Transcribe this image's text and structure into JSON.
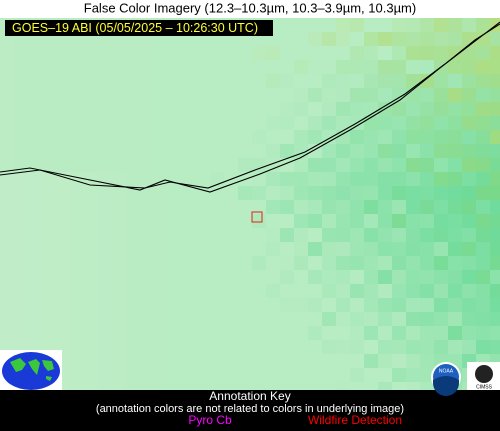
{
  "header": {
    "title": "False Color Imagery (12.3–10.3µm, 10.3–3.9µm, 10.3µm)"
  },
  "image": {
    "label": "GOES–19 ABI (05/05/2025 – 10:26:30 UTC)"
  },
  "annotation_key": {
    "title": "Annotation Key",
    "note": "(annotation colors are not related to colors in underlying image)",
    "items": [
      "Pyro Cb",
      "Wildfire Detection"
    ]
  },
  "logos": [
    "NOAA",
    "CIMSS"
  ]
}
